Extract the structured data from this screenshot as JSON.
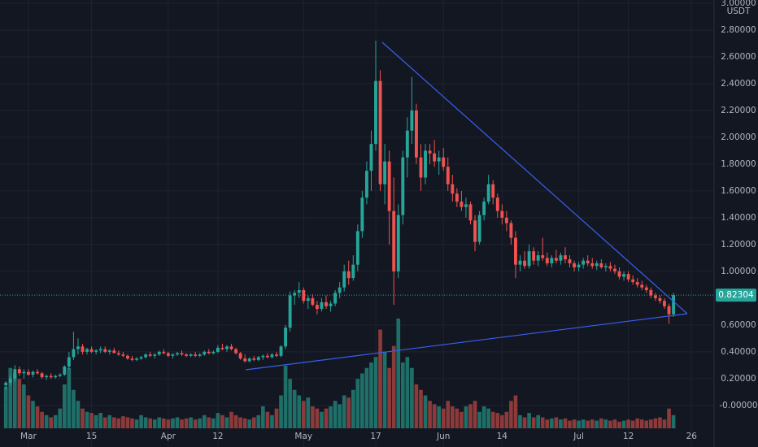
{
  "chart_data": {
    "type": "candlestick",
    "currency": "USDT",
    "grid": true,
    "up_color": "#26a69a",
    "down_color": "#ef5350",
    "volume_up_color": "#1f6f69",
    "volume_down_color": "#8c3a3a",
    "last_price": 0.82304,
    "ylim": [
      -0.31,
      3.024
    ],
    "yticks": [
      {
        "value": 3.0,
        "label": "3.00000"
      },
      {
        "value": 2.8,
        "label": "2.80000"
      },
      {
        "value": 2.6,
        "label": "2.60000"
      },
      {
        "value": 2.4,
        "label": "2.40000"
      },
      {
        "value": 2.2,
        "label": "2.20000"
      },
      {
        "value": 2.0,
        "label": "2.00000"
      },
      {
        "value": 1.8,
        "label": "1.80000"
      },
      {
        "value": 1.6,
        "label": "1.60000"
      },
      {
        "value": 1.4,
        "label": "1.40000"
      },
      {
        "value": 1.2,
        "label": "1.20000"
      },
      {
        "value": 1.0,
        "label": "1.00000"
      },
      {
        "value": 0.6,
        "label": "0.60000"
      },
      {
        "value": 0.4,
        "label": "0.40000"
      },
      {
        "value": 0.2,
        "label": "0.20000"
      },
      {
        "value": 0,
        "label": "-0.00000"
      }
    ],
    "xlim": [
      -1.3,
      157
    ],
    "xticks": [
      {
        "value": 5,
        "label": "Mar"
      },
      {
        "value": 19,
        "label": "15"
      },
      {
        "value": 36,
        "label": "Apr"
      },
      {
        "value": 47,
        "label": "12"
      },
      {
        "value": 66,
        "label": "May"
      },
      {
        "value": 82,
        "label": "17"
      },
      {
        "value": 97,
        "label": "Jun"
      },
      {
        "value": 110,
        "label": "14"
      },
      {
        "value": 127,
        "label": "Jul"
      },
      {
        "value": 138,
        "label": "12"
      },
      {
        "value": 152,
        "label": "26"
      }
    ],
    "candles": [
      [
        0.15,
        0.18,
        0.12,
        0.17
      ],
      [
        0.17,
        0.22,
        0.15,
        0.2
      ],
      [
        0.2,
        0.3,
        0.18,
        0.27
      ],
      [
        0.27,
        0.29,
        0.22,
        0.24
      ],
      [
        0.24,
        0.27,
        0.2,
        0.25
      ],
      [
        0.25,
        0.27,
        0.22,
        0.23
      ],
      [
        0.23,
        0.26,
        0.21,
        0.25
      ],
      [
        0.25,
        0.27,
        0.23,
        0.24
      ],
      [
        0.24,
        0.25,
        0.2,
        0.21
      ],
      [
        0.21,
        0.23,
        0.19,
        0.22
      ],
      [
        0.22,
        0.24,
        0.2,
        0.21
      ],
      [
        0.21,
        0.23,
        0.2,
        0.22
      ],
      [
        0.22,
        0.24,
        0.21,
        0.23
      ],
      [
        0.23,
        0.3,
        0.22,
        0.29
      ],
      [
        0.29,
        0.4,
        0.27,
        0.36
      ],
      [
        0.36,
        0.55,
        0.34,
        0.42
      ],
      [
        0.42,
        0.5,
        0.38,
        0.44
      ],
      [
        0.44,
        0.46,
        0.38,
        0.4
      ],
      [
        0.4,
        0.43,
        0.38,
        0.42
      ],
      [
        0.42,
        0.44,
        0.39,
        0.4
      ],
      [
        0.4,
        0.42,
        0.38,
        0.41
      ],
      [
        0.41,
        0.44,
        0.39,
        0.42
      ],
      [
        0.42,
        0.44,
        0.39,
        0.4
      ],
      [
        0.4,
        0.42,
        0.38,
        0.41
      ],
      [
        0.41,
        0.43,
        0.39,
        0.39
      ],
      [
        0.39,
        0.41,
        0.37,
        0.38
      ],
      [
        0.38,
        0.4,
        0.36,
        0.37
      ],
      [
        0.37,
        0.38,
        0.34,
        0.35
      ],
      [
        0.35,
        0.37,
        0.33,
        0.34
      ],
      [
        0.34,
        0.36,
        0.33,
        0.35
      ],
      [
        0.35,
        0.37,
        0.34,
        0.36
      ],
      [
        0.36,
        0.39,
        0.35,
        0.38
      ],
      [
        0.38,
        0.4,
        0.36,
        0.37
      ],
      [
        0.37,
        0.39,
        0.35,
        0.38
      ],
      [
        0.38,
        0.41,
        0.37,
        0.4
      ],
      [
        0.4,
        0.42,
        0.38,
        0.39
      ],
      [
        0.39,
        0.4,
        0.36,
        0.37
      ],
      [
        0.37,
        0.39,
        0.35,
        0.38
      ],
      [
        0.38,
        0.4,
        0.37,
        0.39
      ],
      [
        0.39,
        0.41,
        0.37,
        0.38
      ],
      [
        0.38,
        0.39,
        0.36,
        0.37
      ],
      [
        0.37,
        0.39,
        0.36,
        0.38
      ],
      [
        0.38,
        0.4,
        0.36,
        0.37
      ],
      [
        0.37,
        0.39,
        0.36,
        0.38
      ],
      [
        0.38,
        0.41,
        0.37,
        0.4
      ],
      [
        0.4,
        0.42,
        0.38,
        0.39
      ],
      [
        0.39,
        0.41,
        0.38,
        0.4
      ],
      [
        0.4,
        0.45,
        0.39,
        0.43
      ],
      [
        0.43,
        0.46,
        0.41,
        0.42
      ],
      [
        0.42,
        0.45,
        0.4,
        0.44
      ],
      [
        0.44,
        0.46,
        0.41,
        0.42
      ],
      [
        0.42,
        0.43,
        0.38,
        0.39
      ],
      [
        0.39,
        0.4,
        0.34,
        0.35
      ],
      [
        0.35,
        0.38,
        0.32,
        0.33
      ],
      [
        0.33,
        0.36,
        0.32,
        0.35
      ],
      [
        0.35,
        0.37,
        0.33,
        0.34
      ],
      [
        0.34,
        0.37,
        0.33,
        0.36
      ],
      [
        0.36,
        0.38,
        0.34,
        0.37
      ],
      [
        0.37,
        0.39,
        0.35,
        0.36
      ],
      [
        0.36,
        0.39,
        0.35,
        0.38
      ],
      [
        0.38,
        0.4,
        0.36,
        0.37
      ],
      [
        0.37,
        0.45,
        0.36,
        0.44
      ],
      [
        0.44,
        0.6,
        0.42,
        0.58
      ],
      [
        0.58,
        0.85,
        0.55,
        0.82
      ],
      [
        0.82,
        0.86,
        0.75,
        0.84
      ],
      [
        0.84,
        0.92,
        0.8,
        0.86
      ],
      [
        0.86,
        0.88,
        0.76,
        0.78
      ],
      [
        0.78,
        0.82,
        0.72,
        0.8
      ],
      [
        0.8,
        0.83,
        0.74,
        0.75
      ],
      [
        0.75,
        0.78,
        0.68,
        0.72
      ],
      [
        0.72,
        0.8,
        0.7,
        0.77
      ],
      [
        0.77,
        0.82,
        0.72,
        0.74
      ],
      [
        0.74,
        0.78,
        0.7,
        0.76
      ],
      [
        0.76,
        0.86,
        0.74,
        0.84
      ],
      [
        0.84,
        0.92,
        0.8,
        0.88
      ],
      [
        0.88,
        1.05,
        0.85,
        1.0
      ],
      [
        1.0,
        1.08,
        0.9,
        0.95
      ],
      [
        0.95,
        1.12,
        0.93,
        1.05
      ],
      [
        1.05,
        1.35,
        1.0,
        1.3
      ],
      [
        1.3,
        1.6,
        1.25,
        1.55
      ],
      [
        1.55,
        1.82,
        1.5,
        1.75
      ],
      [
        1.75,
        2.05,
        1.6,
        1.95
      ],
      [
        1.95,
        2.72,
        1.9,
        2.42
      ],
      [
        2.42,
        2.5,
        1.6,
        1.65
      ],
      [
        1.65,
        1.95,
        1.5,
        1.82
      ],
      [
        1.82,
        1.9,
        1.2,
        1.45
      ],
      [
        1.45,
        1.7,
        0.75,
        1.0
      ],
      [
        1.0,
        1.5,
        0.95,
        1.42
      ],
      [
        1.42,
        1.9,
        1.35,
        1.85
      ],
      [
        1.85,
        2.15,
        1.7,
        2.05
      ],
      [
        2.05,
        2.45,
        1.95,
        2.2
      ],
      [
        2.2,
        2.25,
        1.8,
        1.85
      ],
      [
        1.85,
        1.95,
        1.6,
        1.7
      ],
      [
        1.7,
        1.95,
        1.65,
        1.9
      ],
      [
        1.9,
        1.95,
        1.8,
        1.88
      ],
      [
        1.88,
        1.98,
        1.78,
        1.82
      ],
      [
        1.82,
        1.9,
        1.72,
        1.85
      ],
      [
        1.85,
        1.92,
        1.75,
        1.78
      ],
      [
        1.78,
        1.85,
        1.6,
        1.65
      ],
      [
        1.65,
        1.72,
        1.52,
        1.58
      ],
      [
        1.58,
        1.62,
        1.48,
        1.52
      ],
      [
        1.52,
        1.6,
        1.45,
        1.48
      ],
      [
        1.48,
        1.55,
        1.4,
        1.5
      ],
      [
        1.5,
        1.52,
        1.35,
        1.38
      ],
      [
        1.38,
        1.42,
        1.15,
        1.22
      ],
      [
        1.22,
        1.45,
        1.2,
        1.42
      ],
      [
        1.42,
        1.55,
        1.38,
        1.52
      ],
      [
        1.52,
        1.72,
        1.5,
        1.65
      ],
      [
        1.65,
        1.68,
        1.5,
        1.55
      ],
      [
        1.55,
        1.58,
        1.4,
        1.45
      ],
      [
        1.45,
        1.5,
        1.35,
        1.4
      ],
      [
        1.4,
        1.45,
        1.3,
        1.36
      ],
      [
        1.36,
        1.38,
        1.2,
        1.25
      ],
      [
        1.25,
        1.3,
        0.95,
        1.05
      ],
      [
        1.05,
        1.12,
        1.0,
        1.08
      ],
      [
        1.08,
        1.15,
        1.02,
        1.04
      ],
      [
        1.04,
        1.2,
        1.02,
        1.15
      ],
      [
        1.15,
        1.18,
        1.05,
        1.08
      ],
      [
        1.08,
        1.15,
        1.04,
        1.12
      ],
      [
        1.12,
        1.25,
        1.08,
        1.1
      ],
      [
        1.1,
        1.14,
        1.04,
        1.06
      ],
      [
        1.06,
        1.12,
        1.03,
        1.1
      ],
      [
        1.1,
        1.16,
        1.06,
        1.08
      ],
      [
        1.08,
        1.14,
        1.05,
        1.12
      ],
      [
        1.12,
        1.18,
        1.06,
        1.09
      ],
      [
        1.09,
        1.12,
        1.03,
        1.06
      ],
      [
        1.06,
        1.08,
        1.0,
        1.03
      ],
      [
        1.03,
        1.07,
        1.0,
        1.05
      ],
      [
        1.05,
        1.1,
        1.02,
        1.08
      ],
      [
        1.08,
        1.12,
        1.04,
        1.06
      ],
      [
        1.06,
        1.1,
        1.02,
        1.04
      ],
      [
        1.04,
        1.08,
        1.01,
        1.06
      ],
      [
        1.06,
        1.09,
        1.02,
        1.03
      ],
      [
        1.03,
        1.06,
        1.0,
        1.04
      ],
      [
        1.04,
        1.07,
        1.0,
        1.02
      ],
      [
        1.02,
        1.05,
        0.98,
        1.0
      ],
      [
        1.0,
        1.03,
        0.94,
        0.96
      ],
      [
        0.96,
        1.0,
        0.93,
        0.98
      ],
      [
        0.98,
        1.0,
        0.92,
        0.94
      ],
      [
        0.94,
        0.97,
        0.9,
        0.92
      ],
      [
        0.92,
        0.95,
        0.88,
        0.9
      ],
      [
        0.9,
        0.93,
        0.86,
        0.88
      ],
      [
        0.88,
        0.9,
        0.84,
        0.86
      ],
      [
        0.86,
        0.88,
        0.8,
        0.82
      ],
      [
        0.82,
        0.84,
        0.78,
        0.8
      ],
      [
        0.8,
        0.82,
        0.76,
        0.78
      ],
      [
        0.78,
        0.8,
        0.72,
        0.74
      ],
      [
        0.74,
        0.76,
        0.61,
        0.68
      ],
      [
        0.68,
        0.84,
        0.66,
        0.82304
      ]
    ],
    "volume": [
      38,
      55,
      50,
      45,
      40,
      30,
      25,
      20,
      15,
      12,
      10,
      12,
      18,
      40,
      55,
      35,
      25,
      18,
      15,
      14,
      12,
      14,
      10,
      12,
      10,
      9,
      11,
      10,
      9,
      8,
      12,
      10,
      9,
      8,
      10,
      9,
      8,
      9,
      10,
      8,
      9,
      10,
      8,
      9,
      12,
      10,
      9,
      14,
      12,
      10,
      15,
      12,
      10,
      9,
      8,
      10,
      12,
      20,
      15,
      12,
      18,
      30,
      57,
      45,
      35,
      30,
      25,
      28,
      20,
      18,
      15,
      18,
      20,
      25,
      22,
      30,
      28,
      35,
      45,
      50,
      55,
      60,
      65,
      90,
      70,
      55,
      75,
      100,
      60,
      65,
      55,
      40,
      35,
      30,
      25,
      22,
      20,
      18,
      25,
      20,
      18,
      15,
      20,
      22,
      25,
      15,
      20,
      18,
      15,
      14,
      12,
      15,
      25,
      30,
      12,
      10,
      14,
      10,
      12,
      10,
      8,
      9,
      10,
      8,
      9,
      7,
      8,
      7,
      8,
      7,
      8,
      7,
      9,
      8,
      7,
      8,
      6,
      7,
      8,
      7,
      9,
      8,
      7,
      8,
      9,
      10,
      8,
      18,
      12
    ]
  }
}
